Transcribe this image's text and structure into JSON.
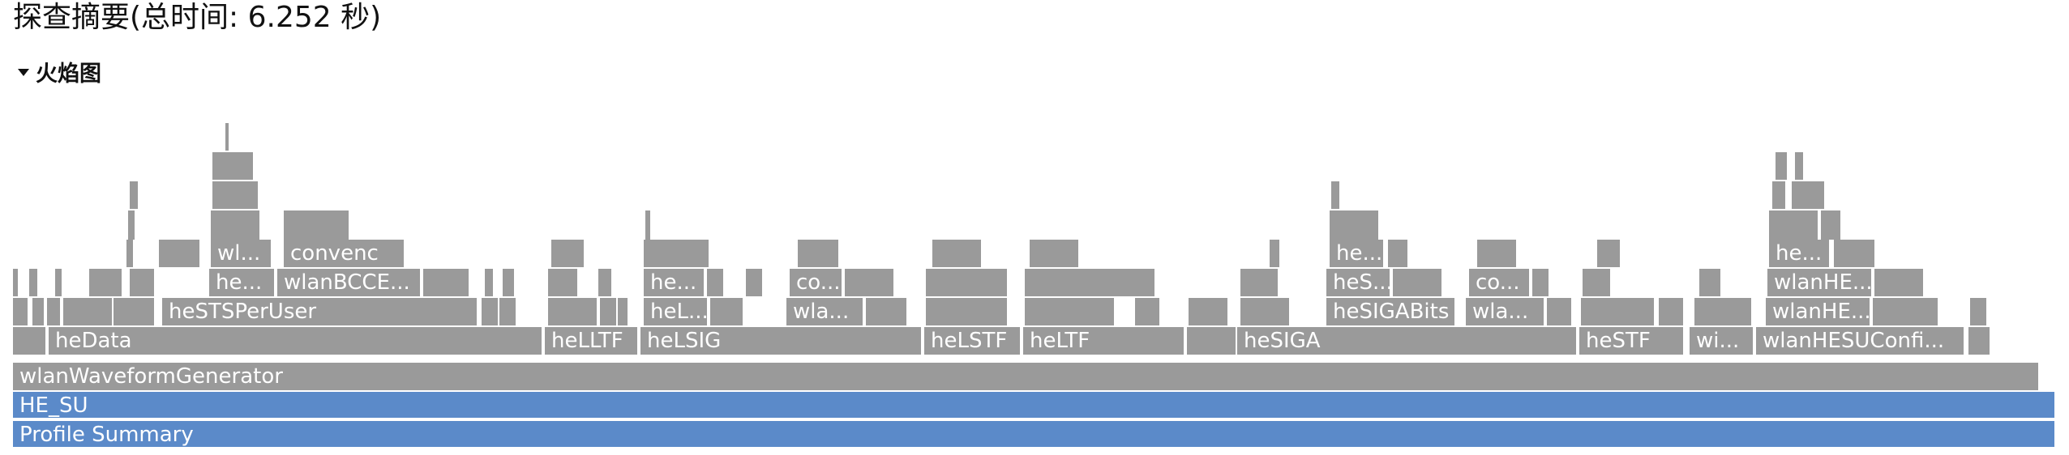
{
  "header": {
    "title": "探查摘要(总时间: 6.252 秒)",
    "section_label": "火焰图"
  },
  "colors": {
    "frame_gray": "#9a9a9a",
    "frame_blue": "#5b8ac9",
    "background": "#ffffff"
  },
  "flame": {
    "root": "Profile Summary",
    "test": "HE_SU",
    "generator": "wlanWaveformGenerator",
    "level1": [
      "heData",
      "heLLTF",
      "heLSIG",
      "heLSTF",
      "heLTF",
      "heSIGA",
      "heSTF",
      "wi...",
      "wlanHESUConfi..."
    ],
    "level2": [
      "heSTSPerUser",
      "heL...",
      "wla...",
      "heSIGABits",
      "wla...",
      "wlanHE..."
    ],
    "level3": [
      "he...",
      "wlanBCCE...",
      "he...",
      "co...",
      "heS...",
      "co...",
      "wlanHE..."
    ],
    "level4": [
      "wl...",
      "convenc",
      "he...",
      "he..."
    ]
  }
}
